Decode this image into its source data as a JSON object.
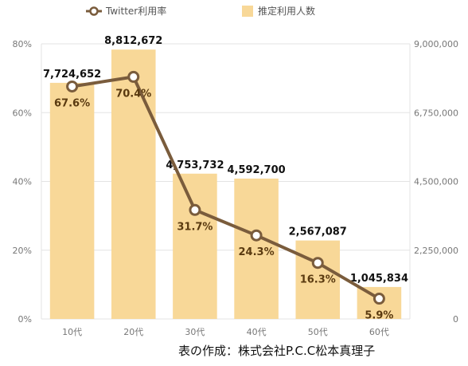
{
  "chart_data": {
    "type": "bar",
    "categories": [
      "10代",
      "20代",
      "30代",
      "40代",
      "50代",
      "60代"
    ],
    "series": [
      {
        "name": "推定利用人数",
        "type": "bar",
        "axis": "right",
        "values": [
          7724652,
          8812672,
          4753732,
          4592700,
          2567087,
          1045834
        ],
        "labels": [
          "7,724,652",
          "8,812,672",
          "4,753,732",
          "4,592,700",
          "2,567,087",
          "1,045,834"
        ],
        "color": "#f8d898"
      },
      {
        "name": "Twitter利用率",
        "type": "line",
        "axis": "left",
        "values": [
          67.6,
          70.4,
          31.7,
          24.3,
          16.3,
          5.9
        ],
        "labels": [
          "67.6%",
          "70.4%",
          "31.7%",
          "24.3%",
          "16.3%",
          "5.9%"
        ],
        "color": "#7a5c3c"
      }
    ],
    "y_left": {
      "ylim": [
        0,
        80
      ],
      "ticks": [
        0,
        20,
        40,
        60,
        80
      ],
      "tick_labels": [
        "0%",
        "20%",
        "40%",
        "60%",
        "80%"
      ]
    },
    "y_right": {
      "ylim": [
        0,
        9000000
      ],
      "ticks": [
        0,
        2250000,
        4500000,
        6750000,
        9000000
      ],
      "tick_labels": [
        "0",
        "2,250,000",
        "4,500,000",
        "6,750,000",
        "9,000,000"
      ]
    },
    "grid": true,
    "legend_position": "top-center",
    "title": "",
    "xlabel": "",
    "ylabel": ""
  },
  "credit": "表の作成：株式会社P.C.C松本真理子",
  "colors": {
    "grid": "#e3e3e3",
    "axis_text": "#777777"
  }
}
